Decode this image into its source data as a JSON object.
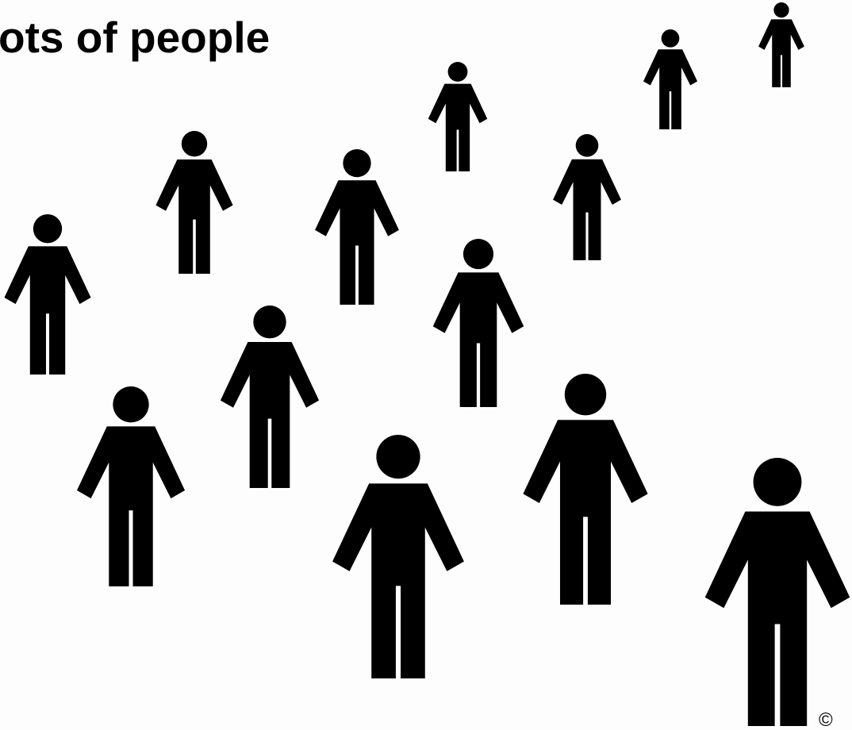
{
  "title": "ots of people",
  "copyright": "©"
}
